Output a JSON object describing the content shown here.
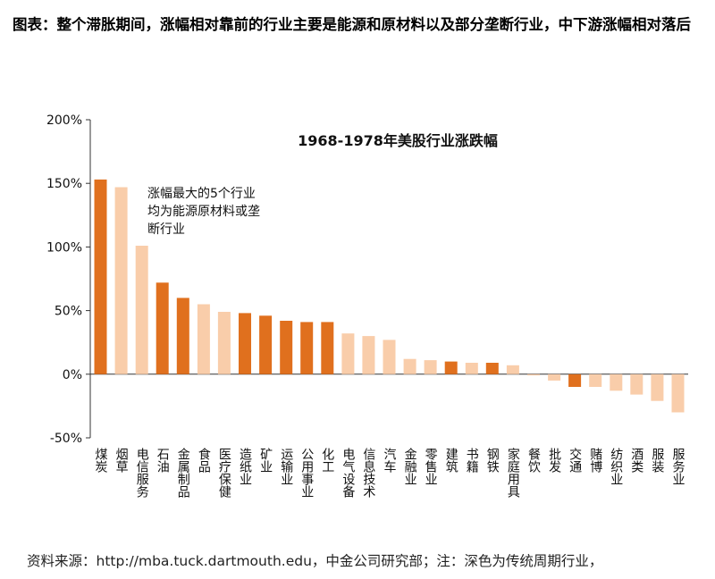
{
  "heading": "图表：整个滞胀期间，涨幅相对靠前的行业主要是能源和原材料以及部分垄断行业，中下游涨幅相对落后",
  "source_note": "资料来源：http://mba.tuck.dartmouth.edu，中金公司研究部；注：深色为传统周期行业，",
  "colors": {
    "dark": "#E0701E",
    "light": "#F9CDAA",
    "axis": "#333333"
  },
  "chart_data": {
    "type": "bar",
    "title": "1968-1978年美股行业涨跌幅",
    "xlabel": "",
    "ylabel": "",
    "ylim": [
      -50,
      200
    ],
    "y_ticks": [
      "200%",
      "150%",
      "100%",
      "50%",
      "0%",
      "-50%"
    ],
    "annotation": [
      "涨幅最大的5个行业",
      "均为能源原材料或垄",
      "断行业"
    ],
    "categories": [
      "煤炭",
      "烟草",
      "电信服务",
      "石油",
      "金属制品",
      "食品",
      "医疗保健",
      "造纸业",
      "矿业",
      "运输业",
      "公用事业",
      "化工",
      "电气设备",
      "信息技术",
      "汽车",
      "金融业",
      "零售业",
      "建筑",
      "书籍",
      "钢铁",
      "家庭用具",
      "餐饮",
      "批发",
      "交通",
      "赌博",
      "纺织业",
      "酒类",
      "服装",
      "服务业"
    ],
    "values": [
      153,
      147,
      101,
      72,
      60,
      55,
      49,
      48,
      46,
      42,
      41,
      41,
      32,
      30,
      27,
      12,
      11,
      10,
      9,
      9,
      7,
      -1,
      -5,
      -10,
      -10,
      -13,
      -16,
      -21,
      -30
    ],
    "traditional_cyclical": [
      true,
      false,
      false,
      true,
      true,
      false,
      false,
      true,
      true,
      true,
      true,
      true,
      false,
      false,
      false,
      false,
      false,
      true,
      false,
      true,
      false,
      false,
      false,
      true,
      false,
      false,
      false,
      false,
      false
    ]
  }
}
